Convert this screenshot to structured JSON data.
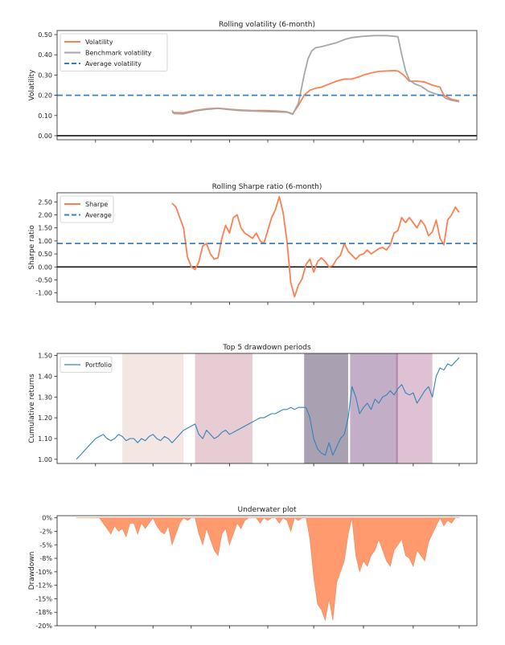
{
  "chart_data": [
    {
      "type": "line",
      "title": "Rolling volatility (6-month)",
      "ylabel": "Volatility",
      "ylim": [
        -0.02,
        0.52
      ],
      "yticks": [
        0.0,
        0.1,
        0.2,
        0.3,
        0.4,
        0.5
      ],
      "ytick_labels": [
        "0.00",
        "0.10",
        "0.20",
        "0.30",
        "0.40",
        "0.50"
      ],
      "legend_position": "top-left",
      "xlim": [
        0,
        100
      ],
      "xticks": [
        5,
        20,
        30,
        40,
        50,
        62,
        75,
        88,
        100
      ],
      "zero_line": 0,
      "series": [
        {
          "name": "Volatility",
          "color": "#ff7f50",
          "style": "solid",
          "x": [
            25,
            28,
            31,
            34,
            37,
            40,
            43,
            46,
            49,
            52,
            55,
            56.5,
            58,
            59.5,
            61,
            62.5,
            64,
            66,
            68,
            70,
            72,
            74,
            75,
            77,
            79,
            81,
            83,
            84,
            85.5,
            87,
            89,
            91,
            93,
            95,
            96,
            98,
            100
          ],
          "y": [
            0.115,
            0.113,
            0.125,
            0.133,
            0.136,
            0.131,
            0.127,
            0.124,
            0.124,
            0.122,
            0.118,
            0.108,
            0.15,
            0.2,
            0.225,
            0.235,
            0.24,
            0.255,
            0.27,
            0.28,
            0.28,
            0.292,
            0.3,
            0.31,
            0.318,
            0.32,
            0.322,
            0.32,
            0.3,
            0.27,
            0.27,
            0.265,
            0.25,
            0.24,
            0.2,
            0.18,
            0.172
          ]
        },
        {
          "name": "Benchmark volatility",
          "color": "#a6a6a6",
          "style": "solid",
          "x": [
            25,
            25.5,
            28,
            31,
            34,
            37,
            40,
            43,
            46,
            49,
            52,
            55,
            56.5,
            58,
            59.5,
            60.5,
            61.5,
            62.5,
            64,
            66,
            68,
            70,
            72,
            75,
            78,
            81,
            84,
            85,
            86,
            87,
            88.5,
            90,
            92,
            94,
            95.5,
            96.5,
            98,
            100
          ],
          "y": [
            0.125,
            0.11,
            0.108,
            0.122,
            0.13,
            0.135,
            0.129,
            0.124,
            0.122,
            0.12,
            0.118,
            0.116,
            0.106,
            0.16,
            0.3,
            0.38,
            0.42,
            0.435,
            0.44,
            0.45,
            0.46,
            0.475,
            0.485,
            0.492,
            0.495,
            0.495,
            0.49,
            0.4,
            0.32,
            0.275,
            0.255,
            0.245,
            0.22,
            0.205,
            0.2,
            0.185,
            0.175,
            0.168
          ]
        },
        {
          "name": "Average volatility",
          "color": "#3a7fc4",
          "style": "dashed",
          "constant": 0.2
        }
      ]
    },
    {
      "type": "line",
      "title": "Rolling Sharpe ratio (6-month)",
      "ylabel": "Sharpe ratio",
      "ylim": [
        -1.35,
        2.85
      ],
      "yticks": [
        -1.0,
        -0.5,
        0.0,
        0.5,
        1.0,
        1.5,
        2.0,
        2.5
      ],
      "ytick_labels": [
        "-1.00",
        "-0.50",
        "0.00",
        "0.50",
        "1.00",
        "1.50",
        "2.00",
        "2.50"
      ],
      "legend_position": "top-left",
      "xlim": [
        0,
        100
      ],
      "xticks": [
        5,
        20,
        30,
        40,
        50,
        62,
        75,
        88,
        100
      ],
      "zero_line": 0,
      "series": [
        {
          "name": "Sharpe",
          "color": "#ff7f50",
          "style": "solid",
          "x": [
            25,
            26,
            27,
            28,
            29,
            30,
            31,
            32,
            33,
            34,
            35,
            36,
            37,
            38,
            39,
            40,
            41,
            42,
            43,
            44,
            45,
            46,
            47,
            48,
            49,
            50,
            51,
            52,
            53,
            54,
            55,
            56,
            57,
            58,
            59,
            60,
            61,
            62,
            63,
            64,
            65,
            66,
            67,
            68,
            69,
            70,
            71,
            72,
            73,
            74,
            75,
            76,
            77,
            78,
            79,
            80,
            81,
            82,
            83,
            84,
            85,
            86,
            87,
            88,
            89,
            90,
            91,
            92,
            93,
            94,
            95,
            96,
            97,
            98,
            99,
            100
          ],
          "y": [
            2.45,
            2.3,
            1.9,
            1.5,
            0.4,
            0.0,
            -0.1,
            0.2,
            0.8,
            0.9,
            0.5,
            0.3,
            0.35,
            1.1,
            1.6,
            1.3,
            1.9,
            2.0,
            1.5,
            1.3,
            1.2,
            1.1,
            1.3,
            1.0,
            0.9,
            1.4,
            1.9,
            2.2,
            2.7,
            2.1,
            1.0,
            -0.6,
            -1.15,
            -0.7,
            -0.45,
            0.1,
            0.3,
            -0.2,
            0.2,
            0.35,
            0.2,
            0.0,
            0.05,
            0.3,
            0.45,
            0.9,
            0.6,
            0.45,
            0.3,
            0.45,
            0.5,
            0.65,
            0.5,
            0.6,
            0.7,
            0.75,
            0.65,
            0.85,
            1.3,
            1.4,
            1.9,
            1.7,
            1.9,
            1.7,
            1.5,
            1.8,
            1.6,
            1.2,
            1.35,
            1.8,
            1.1,
            0.85,
            1.8,
            2.0,
            2.3,
            2.1
          ]
        },
        {
          "name": "Average",
          "color": "#3a7fc4",
          "style": "dashed",
          "constant": 0.9
        }
      ]
    },
    {
      "type": "line",
      "title": "Top 5 drawdown periods",
      "ylabel": "Cumulative returns",
      "ylim": [
        0.98,
        1.51
      ],
      "yticks": [
        1.0,
        1.1,
        1.2,
        1.3,
        1.4,
        1.5
      ],
      "ytick_labels": [
        "1.00",
        "1.10",
        "1.20",
        "1.30",
        "1.40",
        "1.50"
      ],
      "legend_position": "top-left",
      "xlim": [
        0,
        100
      ],
      "xticks": [
        5,
        20,
        30,
        40,
        50,
        62,
        75,
        88,
        100
      ],
      "drawdown_periods": [
        {
          "start": 12,
          "end": 28,
          "color": "#edd5d1",
          "opacity": 0.6
        },
        {
          "start": 31,
          "end": 46,
          "color": "#c98f9e",
          "opacity": 0.45
        },
        {
          "start": 59.5,
          "end": 71,
          "color": "#332044",
          "opacity": 0.42
        },
        {
          "start": 71.5,
          "end": 84,
          "color": "#5e2a68",
          "opacity": 0.38
        },
        {
          "start": 83.5,
          "end": 93,
          "color": "#a14f80",
          "opacity": 0.35
        }
      ],
      "series": [
        {
          "name": "Portfolio",
          "color": "#3182bd",
          "style": "solid",
          "x": [
            0,
            1,
            2,
            3,
            4,
            5,
            6,
            7,
            8,
            9,
            10,
            11,
            12,
            13,
            14,
            15,
            16,
            17,
            18,
            19,
            20,
            21,
            22,
            23,
            24,
            25,
            26,
            27,
            28,
            29,
            30,
            31,
            32,
            33,
            34,
            35,
            36,
            37,
            38,
            39,
            40,
            41,
            42,
            43,
            44,
            45,
            46,
            47,
            48,
            49,
            50,
            51,
            52,
            53,
            54,
            55,
            56,
            57,
            58,
            59,
            60,
            61,
            62,
            63,
            64,
            65,
            66,
            67,
            68,
            69,
            70,
            71,
            72,
            73,
            74,
            75,
            76,
            77,
            78,
            79,
            80,
            81,
            82,
            83,
            84,
            85,
            86,
            87,
            88,
            89,
            90,
            91,
            92,
            93,
            94,
            95,
            96,
            97,
            98,
            99,
            100
          ],
          "y": [
            1.0,
            1.02,
            1.04,
            1.06,
            1.08,
            1.1,
            1.11,
            1.12,
            1.1,
            1.09,
            1.1,
            1.12,
            1.11,
            1.09,
            1.1,
            1.1,
            1.08,
            1.1,
            1.09,
            1.11,
            1.12,
            1.1,
            1.09,
            1.11,
            1.1,
            1.08,
            1.1,
            1.12,
            1.14,
            1.15,
            1.16,
            1.17,
            1.12,
            1.1,
            1.14,
            1.12,
            1.1,
            1.11,
            1.13,
            1.14,
            1.12,
            1.13,
            1.14,
            1.15,
            1.16,
            1.17,
            1.18,
            1.19,
            1.2,
            1.2,
            1.21,
            1.22,
            1.22,
            1.23,
            1.24,
            1.24,
            1.25,
            1.24,
            1.25,
            1.25,
            1.25,
            1.2,
            1.1,
            1.05,
            1.03,
            1.02,
            1.08,
            1.02,
            1.06,
            1.1,
            1.12,
            1.2,
            1.35,
            1.3,
            1.22,
            1.25,
            1.27,
            1.24,
            1.29,
            1.27,
            1.3,
            1.31,
            1.33,
            1.31,
            1.34,
            1.36,
            1.32,
            1.31,
            1.32,
            1.27,
            1.3,
            1.33,
            1.35,
            1.3,
            1.4,
            1.44,
            1.43,
            1.46,
            1.45,
            1.47,
            1.49
          ]
        }
      ]
    },
    {
      "type": "area",
      "title": "Underwater plot",
      "ylabel": "Drawdown",
      "ylim": [
        -20,
        0.4
      ],
      "yticks": [
        0,
        -2,
        -5,
        -8,
        -10,
        -12,
        -15,
        -18,
        -20
      ],
      "ytick_values": [
        0,
        -2.5,
        -5,
        -7.5,
        -10,
        -12.5,
        -15,
        -17.5,
        -20
      ],
      "ytick_labels": [
        "0%",
        "-2%",
        "-5%",
        "-8%",
        "-10%",
        "-12%",
        "-15%",
        "-18%",
        "-20%"
      ],
      "xlim": [
        0,
        100
      ],
      "xticks": [
        5,
        20,
        30,
        40,
        50,
        62,
        75,
        88,
        100
      ],
      "color": "#ff9a6e",
      "x": [
        0,
        1,
        2,
        3,
        4,
        5,
        6,
        7,
        8,
        9,
        10,
        11,
        12,
        13,
        14,
        15,
        16,
        17,
        18,
        19,
        20,
        21,
        22,
        23,
        24,
        25,
        26,
        27,
        28,
        29,
        30,
        31,
        32,
        33,
        34,
        35,
        36,
        37,
        38,
        39,
        40,
        41,
        42,
        43,
        44,
        45,
        46,
        47,
        48,
        49,
        50,
        51,
        52,
        53,
        54,
        55,
        56,
        57,
        58,
        59,
        60,
        61,
        62,
        63,
        64,
        65,
        66,
        67,
        68,
        69,
        70,
        71,
        72,
        73,
        74,
        75,
        76,
        77,
        78,
        79,
        80,
        81,
        82,
        83,
        84,
        85,
        86,
        87,
        88,
        89,
        90,
        91,
        92,
        93,
        94,
        95,
        96,
        97,
        98,
        99,
        100
      ],
      "y": [
        0,
        0,
        0,
        0,
        0,
        0,
        0,
        -1,
        -2,
        -3,
        -1.5,
        -2.5,
        -2,
        -3.5,
        -1,
        -1,
        -3,
        -1,
        -2,
        -1,
        0,
        -1.5,
        -2.5,
        -3,
        -1.5,
        -5,
        -3,
        -1,
        0,
        -0.5,
        0,
        0,
        -3,
        -5,
        -2,
        -4,
        -6,
        -7,
        -3,
        -2,
        -5,
        -3,
        -1,
        -2,
        -0.5,
        0,
        0,
        0,
        -1,
        0,
        -0.5,
        0,
        0,
        -1,
        0,
        -0.5,
        -2.5,
        0,
        -0.5,
        0,
        0,
        -4,
        -11,
        -16,
        -17,
        -19,
        -15,
        -19,
        -12,
        -10,
        -8,
        -3,
        0,
        -7,
        -10,
        -8,
        -9,
        -7,
        -6,
        -4,
        -6,
        -8,
        -9,
        -6,
        -5,
        -4,
        -7,
        -7.5,
        -9,
        -6,
        -7,
        -8,
        -4.5,
        -3,
        -1.5,
        0,
        -1.5,
        -0.5,
        -1,
        0,
        0
      ]
    }
  ]
}
